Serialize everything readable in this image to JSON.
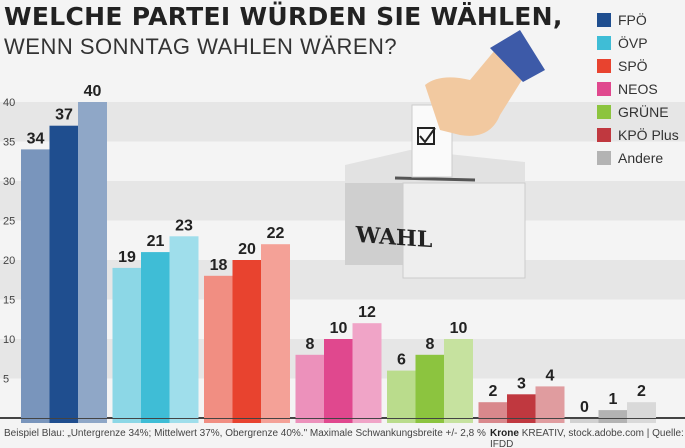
{
  "title_line1": "WELCHE PARTEI WÜRDEN SIE WÄHLEN,",
  "title_line2": "WENN SONNTAG WAHLEN WÄREN?",
  "illustration_label": "WAHL",
  "footnote": "Beispiel Blau: „Untergrenze 34%; Mittelwert 37%, Obergrenze 40%.\" Maximale Schwankungsbreite +/- 2,8 %",
  "source_brand": "Krone",
  "source_rest": "KREATIV, stock.adobe.com | Quelle: IFDD",
  "chart_data": {
    "type": "bar",
    "title": "Welche Partei würden Sie wählen, wenn Sonntag Wahlen wären?",
    "ylim": [
      0,
      40
    ],
    "yticks": [
      5,
      10,
      15,
      20,
      25,
      30,
      35,
      40
    ],
    "legend_position": "top-right",
    "bar_roles": [
      "Untergrenze",
      "Mittelwert",
      "Obergrenze"
    ],
    "series": [
      {
        "name": "FPÖ",
        "color": "#1f4e8f",
        "values": [
          34,
          37,
          40
        ]
      },
      {
        "name": "ÖVP",
        "color": "#3fbdd6",
        "values": [
          19,
          21,
          23
        ]
      },
      {
        "name": "SPÖ",
        "color": "#e8432f",
        "values": [
          18,
          20,
          22
        ]
      },
      {
        "name": "NEOS",
        "color": "#e0488e",
        "values": [
          8,
          10,
          12
        ]
      },
      {
        "name": "GRÜNE",
        "color": "#8cc43f",
        "values": [
          6,
          8,
          10
        ]
      },
      {
        "name": "KPÖ Plus",
        "color": "#c0383f",
        "values": [
          2,
          3,
          4
        ]
      },
      {
        "name": "Andere",
        "color": "#b3b3b3",
        "values": [
          0,
          1,
          2
        ]
      }
    ]
  }
}
